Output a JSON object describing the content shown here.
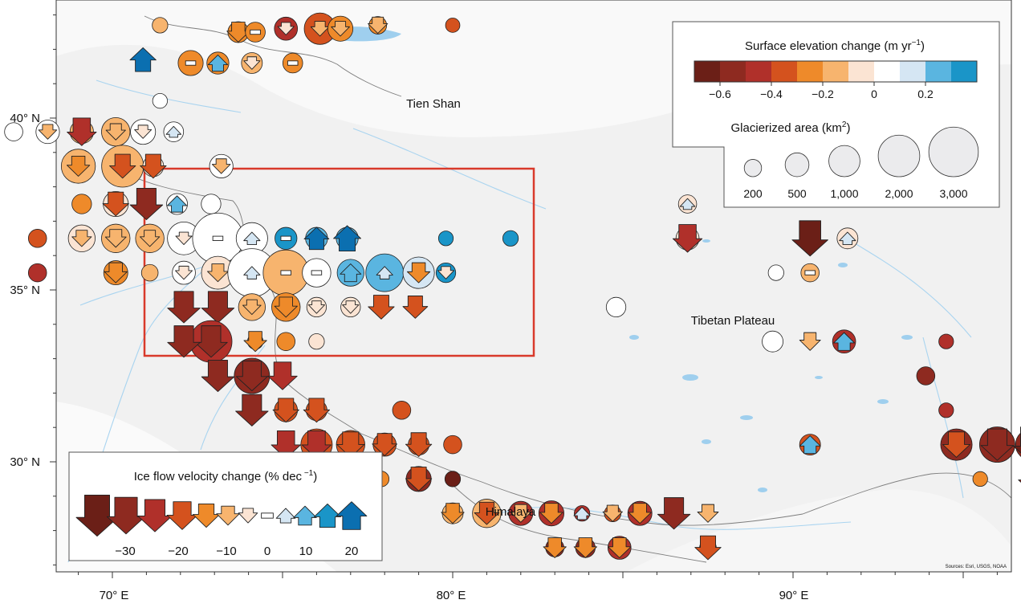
{
  "map": {
    "region_labels": [
      "Tien Shan",
      "Tibetan Plateau",
      "Himalaya"
    ],
    "lon_ticks": [
      "70° E",
      "80° E",
      "90° E"
    ],
    "lat_ticks": [
      "40° N",
      "35° N",
      "30° N"
    ],
    "attribution": "Sources: Esri, USGS, NOAA"
  },
  "elevation_legend": {
    "title": "Surface elevation change (m yr",
    "title_sup": "−1",
    "title_end": ")",
    "colors": [
      "#6b1f17",
      "#8e2a20",
      "#b0302a",
      "#d4521e",
      "#ee8a2a",
      "#f7b46e",
      "#fbe4d3",
      "#ffffff",
      "#d5e6f3",
      "#5ab5e0",
      "#1a95c8"
    ],
    "tick_labels": [
      "−0.6",
      "−0.4",
      "−0.2",
      "0",
      "0.2"
    ],
    "area_title": "Glacierized area (km",
    "area_title_sup": "2",
    "area_title_end": ")",
    "area_labels": [
      "200",
      "500",
      "1,000",
      "2,000",
      "3,000"
    ]
  },
  "velocity_legend": {
    "title": "Ice flow velocity change (% dec",
    "title_sup": " −1",
    "title_end": ")",
    "labels": [
      "−30",
      "−20",
      "−10",
      "0",
      "10",
      "20"
    ],
    "arrows": [
      {
        "value": -35,
        "color": "#6b1f17"
      },
      {
        "value": -30,
        "color": "#8e2a20"
      },
      {
        "value": -25,
        "color": "#b0302a"
      },
      {
        "value": -20,
        "color": "#d4521e"
      },
      {
        "value": -15,
        "color": "#ee8a2a"
      },
      {
        "value": -10,
        "color": "#f7b46e"
      },
      {
        "value": -5,
        "color": "#fbe4d3"
      },
      {
        "value": 0,
        "color": "#ffffff"
      },
      {
        "value": 5,
        "color": "#d5e6f3"
      },
      {
        "value": 10,
        "color": "#5ab5e0"
      },
      {
        "value": 15,
        "color": "#1a95c8"
      },
      {
        "value": 20,
        "color": "#0b6fb0"
      }
    ]
  },
  "glaciers": [
    {
      "lon": 71.4,
      "lat": 42.7,
      "area": 120,
      "elev": -0.2,
      "vel": null
    },
    {
      "lon": 73.7,
      "lat": 42.5,
      "area": 300,
      "elev": -0.3,
      "vel": -15
    },
    {
      "lon": 74.2,
      "lat": 42.5,
      "area": 260,
      "elev": -0.3,
      "vel": 0
    },
    {
      "lon": 75.1,
      "lat": 42.6,
      "area": 400,
      "elev": -0.45,
      "vel": -5
    },
    {
      "lon": 76.1,
      "lat": 42.6,
      "area": 900,
      "elev": -0.35,
      "vel": -8
    },
    {
      "lon": 76.7,
      "lat": 42.6,
      "area": 500,
      "elev": -0.3,
      "vel": -8
    },
    {
      "lon": 77.8,
      "lat": 42.7,
      "area": 180,
      "elev": -0.3,
      "vel": -10
    },
    {
      "lon": 80.0,
      "lat": 42.7,
      "area": 90,
      "elev": -0.4,
      "vel": null
    },
    {
      "lon": 70.9,
      "lat": 41.7,
      "area": 0,
      "elev": 0.2,
      "vel": 20
    },
    {
      "lon": 72.3,
      "lat": 41.6,
      "area": 500,
      "elev": -0.3,
      "vel": 0
    },
    {
      "lon": 73.1,
      "lat": 41.6,
      "area": 350,
      "elev": -0.3,
      "vel": 10
    },
    {
      "lon": 74.1,
      "lat": 41.6,
      "area": 300,
      "elev": -0.2,
      "vel": -5
    },
    {
      "lon": 75.3,
      "lat": 41.6,
      "area": 260,
      "elev": -0.3,
      "vel": 0
    },
    {
      "lon": 71.4,
      "lat": 40.5,
      "area": 100,
      "elev": 0.0,
      "vel": null
    },
    {
      "lon": 67.1,
      "lat": 39.6,
      "area": 200,
      "elev": 0.05,
      "vel": null
    },
    {
      "lon": 68.1,
      "lat": 39.6,
      "area": 420,
      "elev": 0.0,
      "vel": -8
    },
    {
      "lon": 69.1,
      "lat": 39.6,
      "area": 420,
      "elev": -0.2,
      "vel": -25
    },
    {
      "lon": 70.1,
      "lat": 39.6,
      "area": 700,
      "elev": -0.15,
      "vel": -10
    },
    {
      "lon": 70.9,
      "lat": 39.6,
      "area": 500,
      "elev": 0.0,
      "vel": -6
    },
    {
      "lon": 71.8,
      "lat": 39.6,
      "area": 260,
      "elev": 0.0,
      "vel": 3
    },
    {
      "lon": 69.0,
      "lat": 38.6,
      "area": 1100,
      "elev": -0.12,
      "vel": -15
    },
    {
      "lon": 70.3,
      "lat": 38.6,
      "area": 1800,
      "elev": -0.12,
      "vel": -20
    },
    {
      "lon": 71.2,
      "lat": 38.6,
      "area": 300,
      "elev": -0.1,
      "vel": -20
    },
    {
      "lon": 73.2,
      "lat": 38.6,
      "area": 420,
      "elev": 0.05,
      "vel": -8
    },
    {
      "lon": 69.1,
      "lat": 37.5,
      "area": 250,
      "elev": -0.25,
      "vel": null
    },
    {
      "lon": 70.1,
      "lat": 37.5,
      "area": 500,
      "elev": -0.1,
      "vel": -20
    },
    {
      "lon": 71.0,
      "lat": 37.5,
      "area": 0,
      "elev": -0.2,
      "vel": -30
    },
    {
      "lon": 71.9,
      "lat": 37.5,
      "area": 300,
      "elev": 0.05,
      "vel": 10
    },
    {
      "lon": 72.9,
      "lat": 37.5,
      "area": 250,
      "elev": 0.05,
      "vel": null
    },
    {
      "lon": 67.8,
      "lat": 36.5,
      "area": 200,
      "elev": -0.35,
      "vel": null
    },
    {
      "lon": 69.1,
      "lat": 36.5,
      "area": 600,
      "elev": -0.1,
      "vel": -10
    },
    {
      "lon": 70.1,
      "lat": 36.5,
      "area": 700,
      "elev": -0.12,
      "vel": -12
    },
    {
      "lon": 71.1,
      "lat": 36.5,
      "area": 700,
      "elev": -0.12,
      "vel": -10
    },
    {
      "lon": 72.1,
      "lat": 36.5,
      "area": 1000,
      "elev": 0.0,
      "vel": -5
    },
    {
      "lon": 73.1,
      "lat": 36.5,
      "area": 2800,
      "elev": 0.0,
      "vel": 0
    },
    {
      "lon": 74.1,
      "lat": 36.5,
      "area": 900,
      "elev": 0.08,
      "vel": 5
    },
    {
      "lon": 75.1,
      "lat": 36.5,
      "area": 350,
      "elev": 0.3,
      "vel": 0
    },
    {
      "lon": 76.0,
      "lat": 36.5,
      "area": 350,
      "elev": 0.25,
      "vel": 18
    },
    {
      "lon": 76.9,
      "lat": 36.5,
      "area": 350,
      "elev": 0.25,
      "vel": 22
    },
    {
      "lon": 79.8,
      "lat": 36.5,
      "area": 100,
      "elev": 0.3,
      "vel": null
    },
    {
      "lon": 81.7,
      "lat": 36.5,
      "area": 120,
      "elev": 0.3,
      "vel": null
    },
    {
      "lon": 86.9,
      "lat": 36.5,
      "area": 400,
      "elev": -0.1,
      "vel": -25
    },
    {
      "lon": 90.5,
      "lat": 36.5,
      "area": 300,
      "elev": -0.05,
      "vel": -35
    },
    {
      "lon": 91.6,
      "lat": 36.5,
      "area": 300,
      "elev": -0.1,
      "vel": 5
    },
    {
      "lon": 86.9,
      "lat": 37.5,
      "area": 200,
      "elev": -0.1,
      "vel": 3
    },
    {
      "lon": 67.8,
      "lat": 35.5,
      "area": 200,
      "elev": -0.45,
      "vel": null
    },
    {
      "lon": 70.1,
      "lat": 35.5,
      "area": 450,
      "elev": -0.25,
      "vel": -15
    },
    {
      "lon": 71.1,
      "lat": 35.5,
      "area": 150,
      "elev": -0.15,
      "vel": null
    },
    {
      "lon": 72.1,
      "lat": 35.5,
      "area": 400,
      "elev": 0.0,
      "vel": -6
    },
    {
      "lon": 73.1,
      "lat": 35.5,
      "area": 1000,
      "elev": -0.1,
      "vel": -12
    },
    {
      "lon": 74.1,
      "lat": 35.5,
      "area": 2500,
      "elev": 0.0,
      "vel": 5
    },
    {
      "lon": 75.1,
      "lat": 35.5,
      "area": 2200,
      "elev": -0.12,
      "vel": 0
    },
    {
      "lon": 76.0,
      "lat": 35.5,
      "area": 700,
      "elev": 0.0,
      "vel": 0
    },
    {
      "lon": 77.0,
      "lat": 35.5,
      "area": 600,
      "elev": 0.25,
      "vel": 12
    },
    {
      "lon": 78.0,
      "lat": 35.5,
      "area": 1400,
      "elev": 0.25,
      "vel": 5
    },
    {
      "lon": 79.0,
      "lat": 35.5,
      "area": 900,
      "elev": 0.1,
      "vel": -15
    },
    {
      "lon": 79.8,
      "lat": 35.5,
      "area": 250,
      "elev": 0.3,
      "vel": -5
    },
    {
      "lon": 89.5,
      "lat": 35.5,
      "area": 120,
      "elev": 0.0,
      "vel": null
    },
    {
      "lon": 90.5,
      "lat": 35.5,
      "area": 200,
      "elev": -0.2,
      "vel": 0
    },
    {
      "lon": 72.1,
      "lat": 34.5,
      "area": 0,
      "elev": -0.5,
      "vel": -30
    },
    {
      "lon": 73.1,
      "lat": 34.5,
      "area": 0,
      "elev": -0.5,
      "vel": -30
    },
    {
      "lon": 74.1,
      "lat": 34.5,
      "area": 600,
      "elev": -0.2,
      "vel": -8
    },
    {
      "lon": 75.1,
      "lat": 34.5,
      "area": 700,
      "elev": -0.25,
      "vel": -15
    },
    {
      "lon": 76.0,
      "lat": 34.5,
      "area": 250,
      "elev": -0.05,
      "vel": -5
    },
    {
      "lon": 77.0,
      "lat": 34.5,
      "area": 250,
      "elev": -0.03,
      "vel": -5
    },
    {
      "lon": 77.9,
      "lat": 34.5,
      "area": 100,
      "elev": -0.3,
      "vel": -20
    },
    {
      "lon": 78.9,
      "lat": 34.5,
      "area": 100,
      "elev": -0.3,
      "vel": -18
    },
    {
      "lon": 84.8,
      "lat": 34.5,
      "area": 250,
      "elev": 0.0,
      "vel": null
    },
    {
      "lon": 72.9,
      "lat": 33.5,
      "area": 1800,
      "elev": -0.5,
      "vel": -30
    },
    {
      "lon": 74.2,
      "lat": 33.5,
      "area": 120,
      "elev": -0.3,
      "vel": -15
    },
    {
      "lon": 75.1,
      "lat": 33.5,
      "area": 200,
      "elev": -0.3,
      "vel": null
    },
    {
      "lon": 76.0,
      "lat": 33.5,
      "area": 120,
      "elev": -0.05,
      "vel": null
    },
    {
      "lon": 72.1,
      "lat": 33.5,
      "area": 0,
      "elev": -0.5,
      "vel": -30
    },
    {
      "lon": 89.4,
      "lat": 33.5,
      "area": 300,
      "elev": 0.0,
      "vel": null
    },
    {
      "lon": 90.5,
      "lat": 33.5,
      "area": 0,
      "elev": -0.25,
      "vel": -12
    },
    {
      "lon": 91.5,
      "lat": 33.5,
      "area": 400,
      "elev": -0.5,
      "vel": 12
    },
    {
      "lon": 94.5,
      "lat": 33.5,
      "area": 100,
      "elev": -0.5,
      "vel": null
    },
    {
      "lon": 73.1,
      "lat": 32.5,
      "area": 0,
      "elev": -0.55,
      "vel": -30
    },
    {
      "lon": 74.1,
      "lat": 32.5,
      "area": 1200,
      "elev": -0.55,
      "vel": -28
    },
    {
      "lon": 75.0,
      "lat": 32.5,
      "area": 0,
      "elev": -0.5,
      "vel": -25
    },
    {
      "lon": 93.9,
      "lat": 32.5,
      "area": 200,
      "elev": -0.55,
      "vel": null
    },
    {
      "lon": 74.1,
      "lat": 31.5,
      "area": 0,
      "elev": -0.5,
      "vel": -30
    },
    {
      "lon": 75.1,
      "lat": 31.5,
      "area": 400,
      "elev": -0.4,
      "vel": -20
    },
    {
      "lon": 76.0,
      "lat": 31.5,
      "area": 300,
      "elev": -0.4,
      "vel": -20
    },
    {
      "lon": 78.5,
      "lat": 31.5,
      "area": 200,
      "elev": -0.35,
      "vel": null
    },
    {
      "lon": 94.5,
      "lat": 31.5,
      "area": 100,
      "elev": -0.45,
      "vel": null
    },
    {
      "lon": 75.1,
      "lat": 30.5,
      "area": 0,
      "elev": -0.5,
      "vel": -25
    },
    {
      "lon": 76.0,
      "lat": 30.5,
      "area": 900,
      "elev": -0.4,
      "vel": -25
    },
    {
      "lon": 77.0,
      "lat": 30.5,
      "area": 700,
      "elev": -0.4,
      "vel": -22
    },
    {
      "lon": 78.0,
      "lat": 30.5,
      "area": 400,
      "elev": -0.4,
      "vel": -18
    },
    {
      "lon": 79.0,
      "lat": 30.5,
      "area": 300,
      "elev": -0.4,
      "vel": -20
    },
    {
      "lon": 80.0,
      "lat": 30.5,
      "area": 200,
      "elev": -0.4,
      "vel": null
    },
    {
      "lon": 90.5,
      "lat": 30.5,
      "area": 300,
      "elev": -0.4,
      "vel": 12
    },
    {
      "lon": 94.8,
      "lat": 30.5,
      "area": 900,
      "elev": -0.6,
      "vel": -22
    },
    {
      "lon": 96.0,
      "lat": 30.5,
      "area": 1200,
      "elev": -0.6,
      "vel": -30
    },
    {
      "lon": 97.0,
      "lat": 30.5,
      "area": 900,
      "elev": -0.6,
      "vel": -35
    },
    {
      "lon": 77.9,
      "lat": 29.5,
      "area": 120,
      "elev": -0.3,
      "vel": null
    },
    {
      "lon": 79.0,
      "lat": 29.5,
      "area": 500,
      "elev": -0.55,
      "vel": -20
    },
    {
      "lon": 80.0,
      "lat": 29.5,
      "area": 120,
      "elev": -0.65,
      "vel": null
    },
    {
      "lon": 95.5,
      "lat": 29.5,
      "area": 100,
      "elev": -0.3,
      "vel": null
    },
    {
      "lon": 97.1,
      "lat": 29.5,
      "area": 150,
      "elev": -0.4,
      "vel": -30
    },
    {
      "lon": 80.0,
      "lat": 28.5,
      "area": 300,
      "elev": -0.2,
      "vel": -15
    },
    {
      "lon": 81.0,
      "lat": 28.5,
      "area": 700,
      "elev": -0.2,
      "vel": -18
    },
    {
      "lon": 82.0,
      "lat": 28.5,
      "area": 450,
      "elev": -0.5,
      "vel": -12
    },
    {
      "lon": 82.9,
      "lat": 28.5,
      "area": 500,
      "elev": -0.5,
      "vel": -15
    },
    {
      "lon": 83.8,
      "lat": 28.5,
      "area": 120,
      "elev": -0.5,
      "vel": 5
    },
    {
      "lon": 84.7,
      "lat": 28.5,
      "area": 150,
      "elev": -0.4,
      "vel": -10
    },
    {
      "lon": 85.5,
      "lat": 28.5,
      "area": 450,
      "elev": -0.5,
      "vel": -15
    },
    {
      "lon": 86.5,
      "lat": 28.5,
      "area": 0,
      "elev": -0.6,
      "vel": -30
    },
    {
      "lon": 87.5,
      "lat": 28.5,
      "area": 0,
      "elev": -0.2,
      "vel": -12
    },
    {
      "lon": 83.0,
      "lat": 27.5,
      "area": 200,
      "elev": -0.55,
      "vel": -15
    },
    {
      "lon": 83.9,
      "lat": 27.5,
      "area": 250,
      "elev": -0.55,
      "vel": -15
    },
    {
      "lon": 84.9,
      "lat": 27.5,
      "area": 400,
      "elev": -0.45,
      "vel": -15
    },
    {
      "lon": 87.5,
      "lat": 27.5,
      "area": 150,
      "elev": -0.45,
      "vel": -20
    }
  ]
}
